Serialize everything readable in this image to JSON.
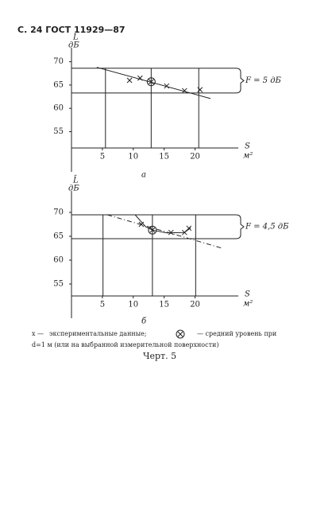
{
  "header": "С. 24 ГОСТ 11929—87",
  "chart_data": [
    {
      "type": "line",
      "title": "а",
      "ylabel": "L",
      "yunit": "дБ",
      "xlabel": "S",
      "xunit": "м²",
      "xlim": [
        0,
        27
      ],
      "ylim": [
        51.5,
        73
      ],
      "xticks": [
        5,
        10,
        15,
        20
      ],
      "yticks": [
        70,
        65,
        60,
        55
      ],
      "limits": {
        "values": [
          68.6,
          63.3
        ],
        "label": "F = 5 дБ"
      },
      "vlines": [
        5.5,
        12.9,
        20.6
      ],
      "series": [
        {
          "marker": "x",
          "x": [
            9.4,
            11.1,
            15.4,
            18.3,
            20.8
          ],
          "values": [
            66.0,
            66.5,
            64.8,
            63.8,
            64.0
          ]
        },
        {
          "marker": "circle-x",
          "x": [
            12.9
          ],
          "values": [
            65.7
          ]
        },
        {
          "style": "solid",
          "x": [
            4.1,
            22.5
          ],
          "values": [
            68.8,
            62.1
          ]
        }
      ]
    },
    {
      "type": "line",
      "title": "б",
      "ylabel": "L̄",
      "yunit": "дБ",
      "xlabel": "S",
      "xunit": "м²",
      "xlim": [
        0,
        27
      ],
      "ylim": [
        52.5,
        74.5
      ],
      "xticks": [
        5,
        10,
        15,
        20
      ],
      "yticks": [
        70,
        65,
        60,
        55
      ],
      "limits": {
        "values": [
          69.5,
          64.5
        ],
        "label": "F = 4,5 дБ"
      },
      "vlines": [
        5.1,
        13.1,
        20.1
      ],
      "series": [
        {
          "marker": "x",
          "x": [
            11.3,
            16.1,
            18.3,
            19.0
          ],
          "values": [
            67.5,
            65.8,
            65.8,
            66.7
          ]
        },
        {
          "marker": "circle-x",
          "x": [
            13.1
          ],
          "values": [
            66.3
          ]
        },
        {
          "style": "dashed",
          "x": [
            5.8,
            24.4
          ],
          "values": [
            69.5,
            62.5
          ]
        },
        {
          "style": "solid",
          "x": [
            10.3,
            12.0,
            13.1,
            15.4,
            18.3,
            19.3
          ],
          "values": [
            69.5,
            67.0,
            66.3,
            65.7,
            65.8,
            66.8
          ]
        }
      ]
    }
  ],
  "legend": {
    "cross": "x —",
    "cross_text": "экспериментальные данные;",
    "mean_text": "— средний уровень при",
    "line2": "d=1 м (или на выбранной измерительной поверхности)"
  },
  "figure_label": "Черт. 5"
}
